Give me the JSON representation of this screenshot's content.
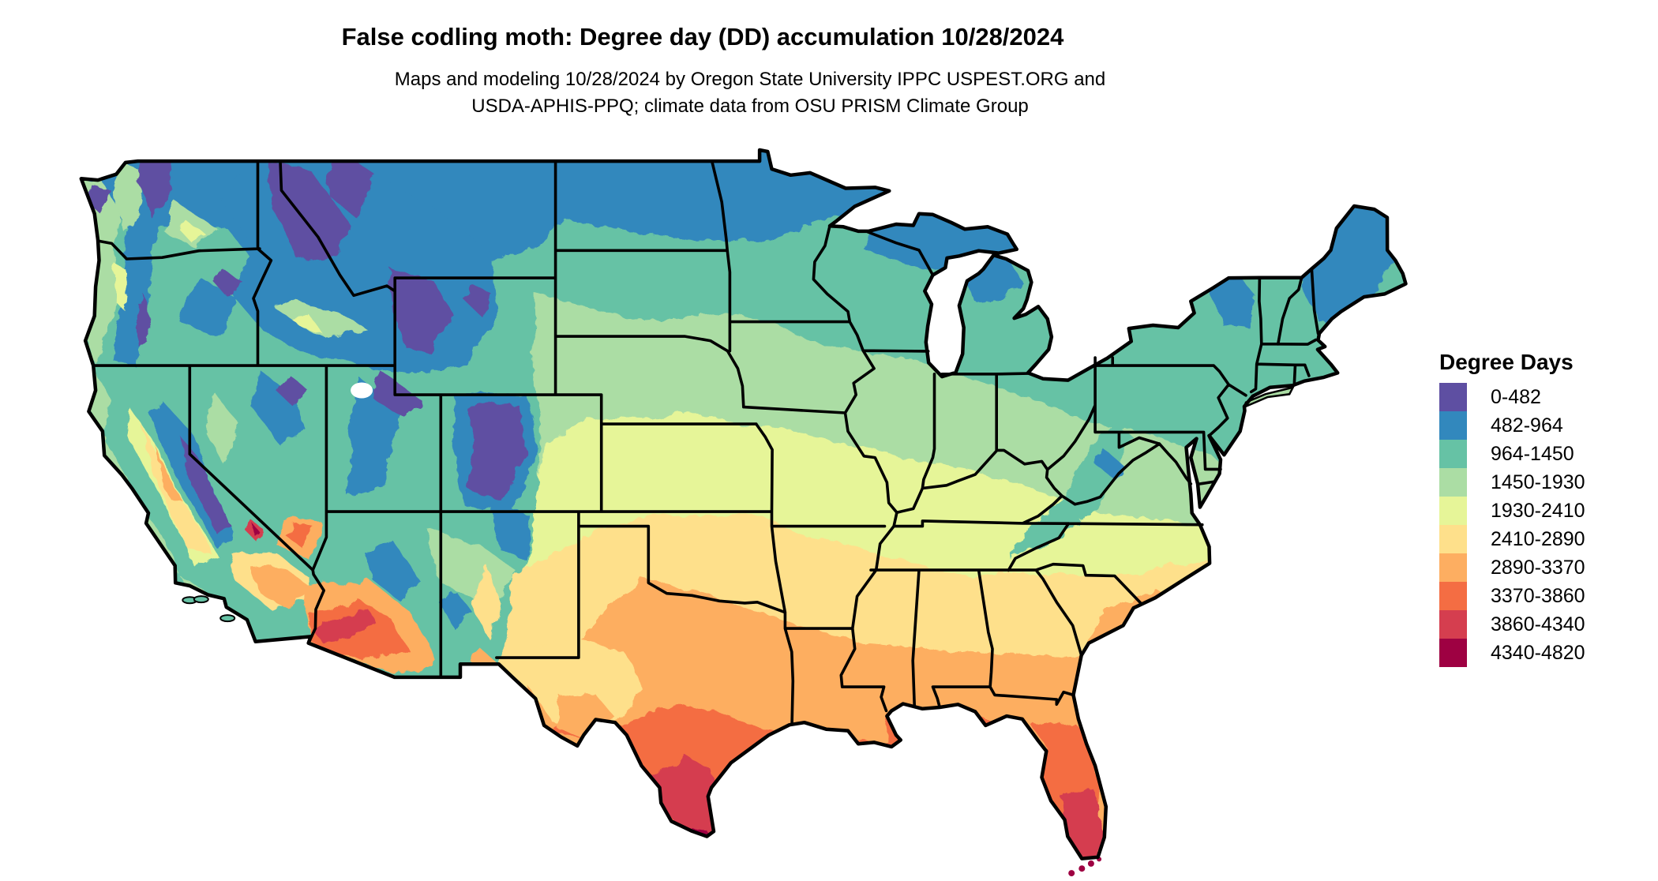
{
  "header": {
    "title": "False codling moth: Degree day (DD) accumulation 10/28/2024",
    "subtitle_line1": "Maps and modeling 10/28/2024 by Oregon State University IPPC USPEST.ORG and",
    "subtitle_line2": "USDA-APHIS-PPQ; climate data from OSU PRISM Climate Group"
  },
  "legend": {
    "title": "Degree Days",
    "classes": [
      {
        "label": "0-482",
        "color": "#5e4fa2"
      },
      {
        "label": "482-964",
        "color": "#3288bd"
      },
      {
        "label": "964-1450",
        "color": "#66c2a5"
      },
      {
        "label": "1450-1930",
        "color": "#abdda4"
      },
      {
        "label": "1930-2410",
        "color": "#e6f598"
      },
      {
        "label": "2410-2890",
        "color": "#fee08b"
      },
      {
        "label": "2890-3370",
        "color": "#fdae61"
      },
      {
        "label": "3370-3860",
        "color": "#f46d43"
      },
      {
        "label": "3860-4340",
        "color": "#d53e4f"
      },
      {
        "label": "4340-4820",
        "color": "#9e0142"
      }
    ]
  },
  "map": {
    "region": "Contiguous United States",
    "kind": "degree-day accumulation raster with state boundaries",
    "border_color": "#000000",
    "water_color": "#ffffff"
  }
}
